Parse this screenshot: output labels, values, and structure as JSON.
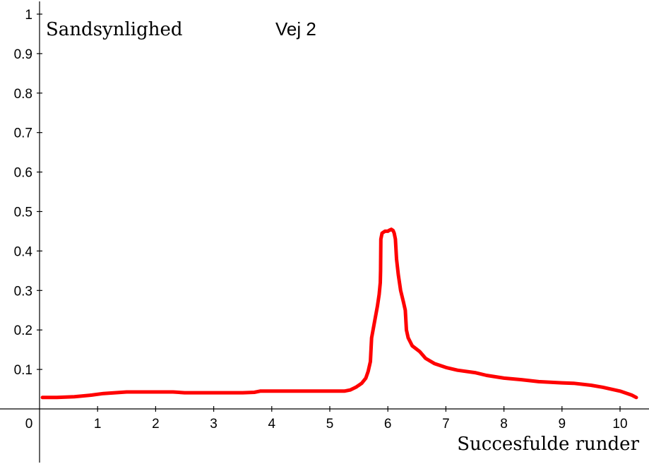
{
  "chart_data": {
    "type": "line",
    "title": "Vej 2",
    "ylabel": "Sandsynlighed",
    "xlabel": "Succesfulde runder",
    "origin_label": "0",
    "xlim": [
      0,
      10.3
    ],
    "ylim": [
      0,
      1.02
    ],
    "x_ticks": [
      1,
      2,
      3,
      4,
      5,
      6,
      7,
      8,
      9,
      10
    ],
    "x_tick_labels": [
      "1",
      "2",
      "3",
      "4",
      "5",
      "6",
      "7",
      "8",
      "9",
      "10"
    ],
    "y_ticks": [
      0.1,
      0.2,
      0.3,
      0.4,
      0.5,
      0.6,
      0.7,
      0.8,
      0.9,
      1
    ],
    "y_tick_labels": [
      "0.1",
      "0.2",
      "0.3",
      "0.4",
      "0.5",
      "0.6",
      "0.7",
      "0.8",
      "0.9",
      "1"
    ],
    "grid": false,
    "legend": "none",
    "series": [
      {
        "color": "#ff0000",
        "points": [
          [
            0.05,
            0.029
          ],
          [
            0.3,
            0.029
          ],
          [
            0.6,
            0.031
          ],
          [
            0.9,
            0.035
          ],
          [
            1.1,
            0.039
          ],
          [
            1.5,
            0.043
          ],
          [
            2.0,
            0.043
          ],
          [
            2.3,
            0.043
          ],
          [
            2.5,
            0.041
          ],
          [
            3.0,
            0.041
          ],
          [
            3.5,
            0.041
          ],
          [
            3.7,
            0.042
          ],
          [
            3.8,
            0.045
          ],
          [
            4.5,
            0.045
          ],
          [
            5.0,
            0.045
          ],
          [
            5.25,
            0.045
          ],
          [
            5.35,
            0.048
          ],
          [
            5.45,
            0.055
          ],
          [
            5.55,
            0.065
          ],
          [
            5.62,
            0.078
          ],
          [
            5.66,
            0.095
          ],
          [
            5.7,
            0.12
          ],
          [
            5.72,
            0.18
          ],
          [
            5.77,
            0.22
          ],
          [
            5.82,
            0.26
          ],
          [
            5.85,
            0.29
          ],
          [
            5.87,
            0.32
          ],
          [
            5.875,
            0.35
          ],
          [
            5.88,
            0.43
          ],
          [
            5.9,
            0.445
          ],
          [
            5.95,
            0.45
          ],
          [
            6.0,
            0.45
          ],
          [
            6.02,
            0.452
          ],
          [
            6.06,
            0.455
          ],
          [
            6.09,
            0.452
          ],
          [
            6.11,
            0.445
          ],
          [
            6.13,
            0.43
          ],
          [
            6.15,
            0.38
          ],
          [
            6.18,
            0.34
          ],
          [
            6.22,
            0.3
          ],
          [
            6.27,
            0.27
          ],
          [
            6.3,
            0.25
          ],
          [
            6.32,
            0.2
          ],
          [
            6.35,
            0.18
          ],
          [
            6.42,
            0.16
          ],
          [
            6.55,
            0.145
          ],
          [
            6.65,
            0.128
          ],
          [
            6.8,
            0.115
          ],
          [
            7.0,
            0.105
          ],
          [
            7.2,
            0.098
          ],
          [
            7.5,
            0.092
          ],
          [
            7.7,
            0.085
          ],
          [
            8.0,
            0.078
          ],
          [
            8.3,
            0.074
          ],
          [
            8.6,
            0.069
          ],
          [
            9.0,
            0.066
          ],
          [
            9.2,
            0.065
          ],
          [
            9.5,
            0.06
          ],
          [
            9.7,
            0.055
          ],
          [
            10.0,
            0.045
          ],
          [
            10.2,
            0.035
          ],
          [
            10.28,
            0.029
          ]
        ]
      }
    ]
  }
}
